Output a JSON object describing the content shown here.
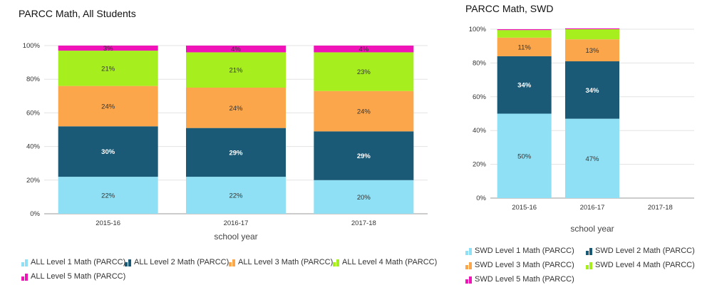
{
  "chart_data": [
    {
      "type": "bar",
      "stacked": true,
      "title": "PARCC Math, All Students",
      "xlabel": "school year",
      "ylabel": "",
      "ylim": [
        0,
        100
      ],
      "yticks": [
        "0%",
        "20%",
        "40%",
        "60%",
        "80%",
        "100%"
      ],
      "categories": [
        "2015-16",
        "2016-17",
        "2017-18"
      ],
      "series": [
        {
          "name": "ALL Level 1 Math (PARCC)",
          "color": "#8fe0f4",
          "values": [
            22,
            22,
            20
          ],
          "labels": [
            "22%",
            "22%",
            "20%"
          ]
        },
        {
          "name": "ALL Level 2 Math (PARCC)",
          "color": "#1b5a77",
          "values": [
            30,
            29,
            29
          ],
          "labels": [
            "30%",
            "29%",
            "29%"
          ]
        },
        {
          "name": "ALL Level 3 Math (PARCC)",
          "color": "#fba64a",
          "values": [
            24,
            24,
            24
          ],
          "labels": [
            "24%",
            "24%",
            "24%"
          ]
        },
        {
          "name": "ALL Level 4 Math (PARCC)",
          "color": "#a7ee1f",
          "values": [
            21,
            21,
            23
          ],
          "labels": [
            "21%",
            "21%",
            "23%"
          ]
        },
        {
          "name": "ALL Level 5 Math (PARCC)",
          "color": "#f013b8",
          "values": [
            3,
            4,
            4
          ],
          "labels": [
            "3%",
            "4%",
            "4%"
          ]
        }
      ],
      "grid": true,
      "legend": "bottom"
    },
    {
      "type": "bar",
      "stacked": true,
      "title": "PARCC Math, SWD",
      "xlabel": "school year",
      "ylabel": "",
      "ylim": [
        0,
        100
      ],
      "yticks": [
        "0%",
        "20%",
        "40%",
        "60%",
        "80%",
        "100%"
      ],
      "categories": [
        "2015-16",
        "2016-17",
        "2017-18"
      ],
      "series": [
        {
          "name": "SWD Level 1 Math (PARCC)",
          "color": "#8fe0f4",
          "values": [
            50,
            47,
            null
          ],
          "labels": [
            "50%",
            "47%",
            ""
          ]
        },
        {
          "name": "SWD Level 2 Math (PARCC)",
          "color": "#1b5a77",
          "values": [
            34,
            34,
            null
          ],
          "labels": [
            "34%",
            "34%",
            ""
          ]
        },
        {
          "name": "SWD Level 3 Math (PARCC)",
          "color": "#fba64a",
          "values": [
            11,
            13,
            null
          ],
          "labels": [
            "11%",
            "13%",
            ""
          ]
        },
        {
          "name": "SWD Level 4 Math (PARCC)",
          "color": "#a7ee1f",
          "values": [
            4.5,
            6,
            null
          ],
          "labels": [
            "",
            "",
            ""
          ]
        },
        {
          "name": "SWD Level 5 Math (PARCC)",
          "color": "#f013b8",
          "values": [
            0.5,
            0.5,
            null
          ],
          "labels": [
            "",
            "",
            ""
          ]
        }
      ],
      "grid": true,
      "legend": "bottom"
    }
  ]
}
